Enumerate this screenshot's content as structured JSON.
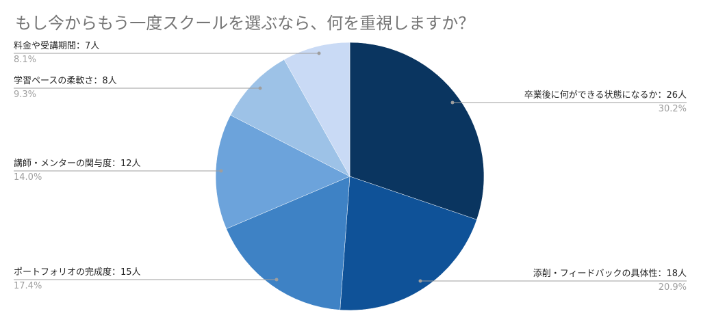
{
  "chart_data": {
    "type": "pie",
    "title": "もし今からもう一度スクールを選ぶなら、何を重視しますか？",
    "colors": {
      "title": "#757575",
      "label": "#222222",
      "percent": "#9e9e9e",
      "leader": "#9e9e9e"
    },
    "slices": [
      {
        "label": "卒業後に何ができる状態になるか：26人",
        "value": 26,
        "percent_text": "30.2%",
        "color": "#0a3560"
      },
      {
        "label": "添削・フィードバックの具体性：18人",
        "value": 18,
        "percent_text": "20.9%",
        "color": "#0f5298"
      },
      {
        "label": "ポートフォリオの完成度：15人",
        "value": 15,
        "percent_text": "17.4%",
        "color": "#3e82c5"
      },
      {
        "label": "講師・メンターの関与度：12人",
        "value": 12,
        "percent_text": "14.0%",
        "color": "#6ca3db"
      },
      {
        "label": "学習ペースの柔軟さ：8人",
        "value": 8,
        "percent_text": "9.3%",
        "color": "#9dc2e7"
      },
      {
        "label": "料金や受講期間：7人",
        "value": 7,
        "percent_text": "8.1%",
        "color": "#c9daf5"
      }
    ]
  }
}
